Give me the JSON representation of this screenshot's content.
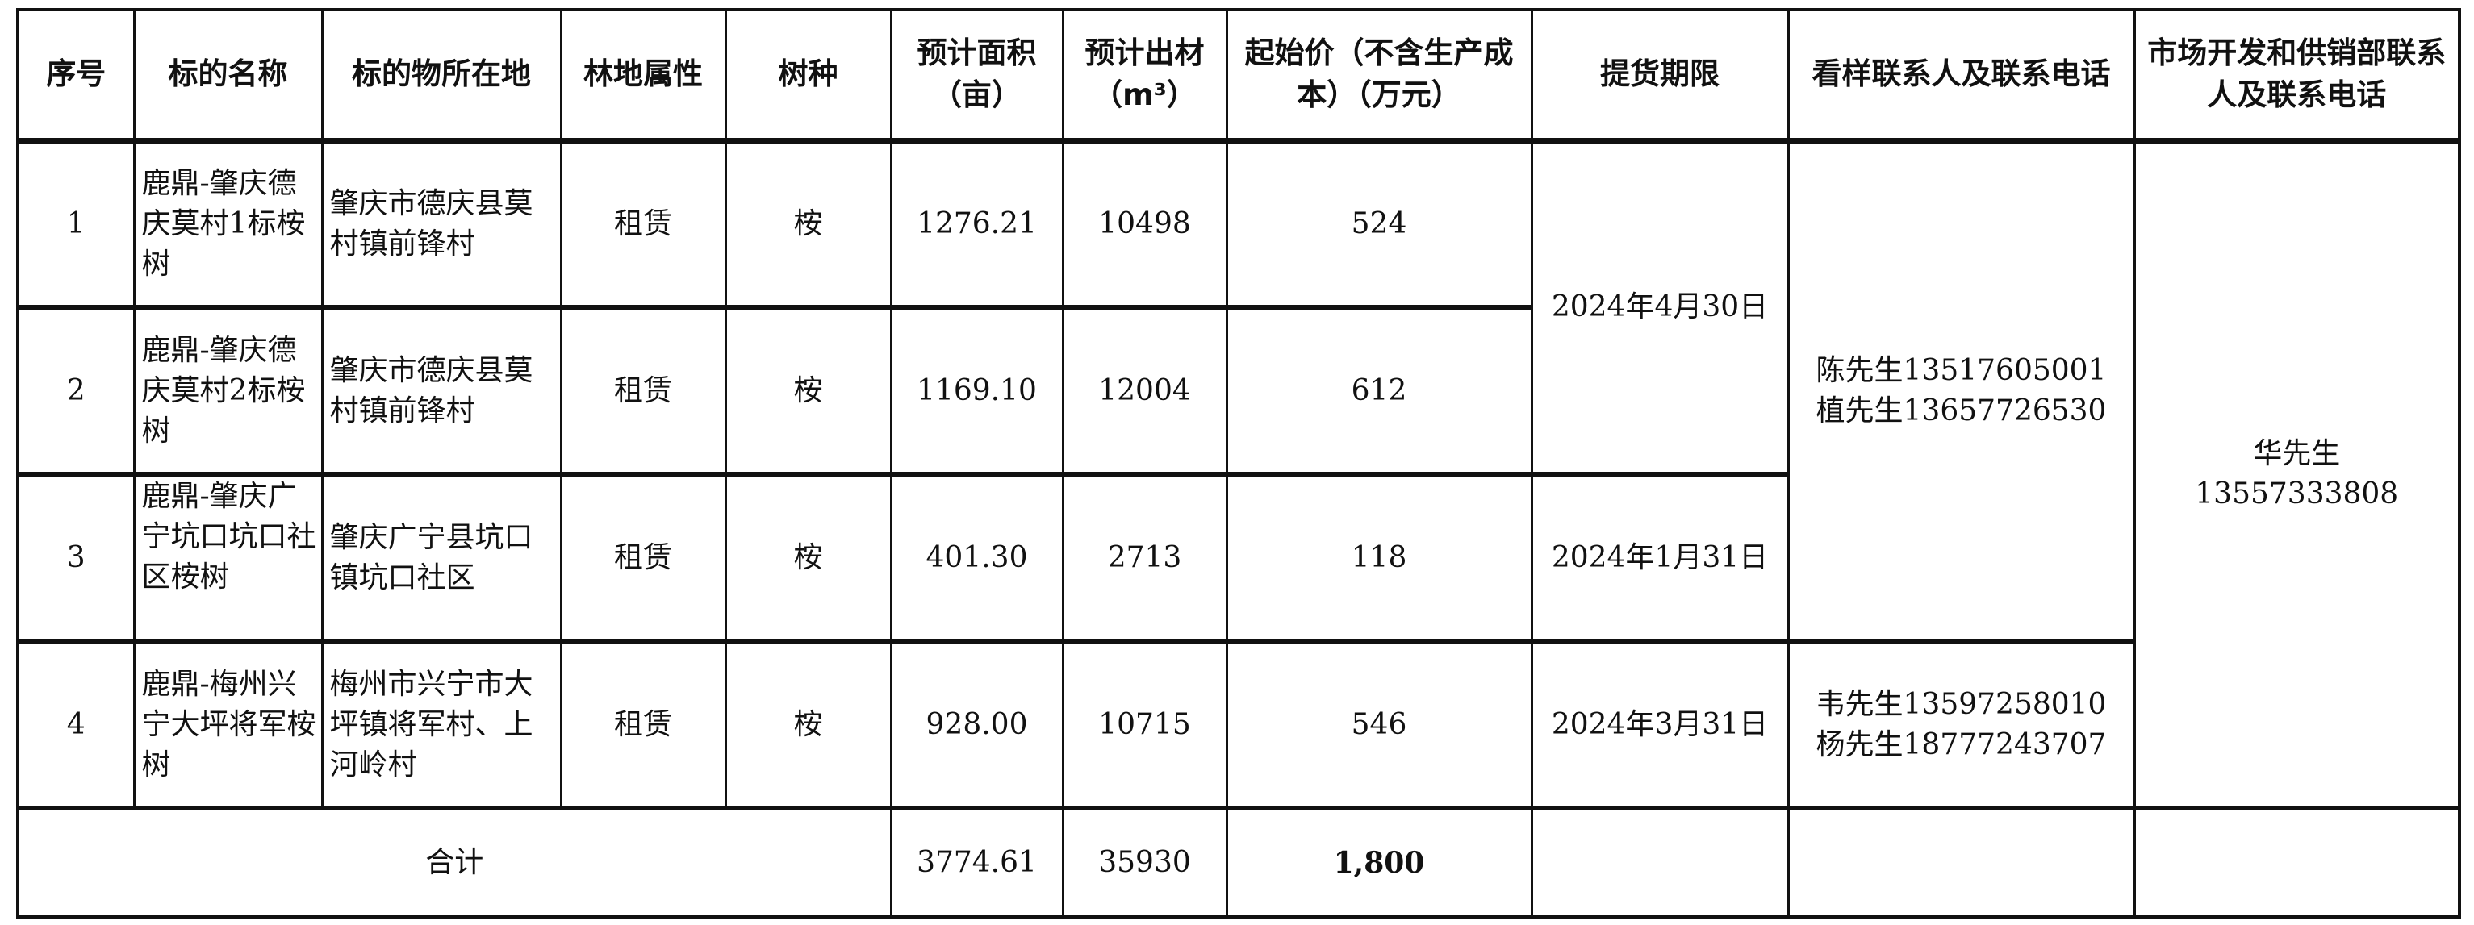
{
  "headers": {
    "seq": "序号",
    "name": "标的名称",
    "location": "标的物所在地",
    "land_type": "林地属性",
    "species": "树种",
    "area": "预计面积（亩）",
    "volume": "预计出材（m³）",
    "price": "起始价（不含生产成本）（万元）",
    "deadline": "提货期限",
    "viewing_contact": "看样联系人及联系电话",
    "market_contact": "市场开发和供销部联系人及联系电话"
  },
  "rows": [
    {
      "seq": "1",
      "name": "鹿鼎-肇庆德庆莫村1标桉树",
      "location": "肇庆市德庆县莫村镇前锋村",
      "land_type": "租赁",
      "species": "桉",
      "area": "1276.21",
      "volume": "10498",
      "price": "524"
    },
    {
      "seq": "2",
      "name": "鹿鼎-肇庆德庆莫村2标桉树",
      "location": "肇庆市德庆县莫村镇前锋村",
      "land_type": "租赁",
      "species": "桉",
      "area": "1169.10",
      "volume": "12004",
      "price": "612"
    },
    {
      "seq": "3",
      "name": "鹿鼎-肇庆广宁坑口坑口社区桉树",
      "location": "肇庆广宁县坑口镇坑口社区",
      "land_type": "租赁",
      "species": "桉",
      "area": "401.30",
      "volume": "2713",
      "price": "118"
    },
    {
      "seq": "4",
      "name": "鹿鼎-梅州兴宁大坪将军桉树",
      "location": "梅州市兴宁市大坪镇将军村、上河岭村",
      "land_type": "租赁",
      "species": "桉",
      "area": "928.00",
      "volume": "10715",
      "price": "546"
    }
  ],
  "deadlines": {
    "rows_1_2": "2024年4月30日",
    "row_3": "2024年1月31日",
    "row_4": "2024年3月31日"
  },
  "viewing_contacts": {
    "rows_1_3": [
      "陈先生13517605001",
      "植先生13657726530"
    ],
    "row_4": [
      "韦先生13597258010",
      "杨先生18777243707"
    ]
  },
  "market_contact": {
    "name": "华先生",
    "phone": "13557333808"
  },
  "total": {
    "label": "合计",
    "area": "3774.61",
    "volume": "35930",
    "price": "1,800"
  }
}
